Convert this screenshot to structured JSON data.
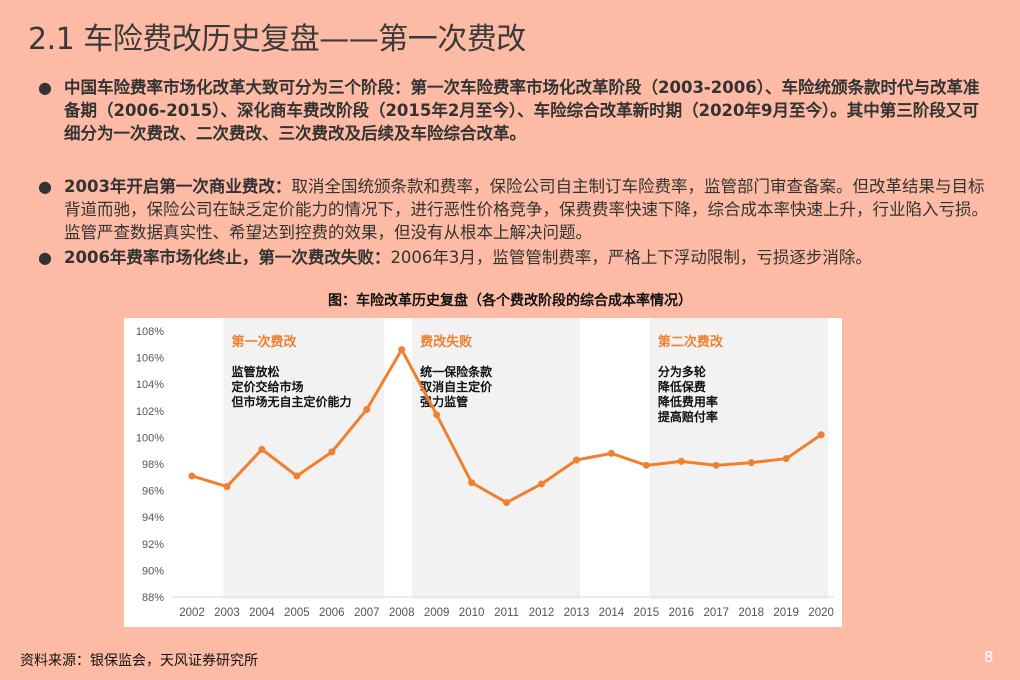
{
  "title": "2.1 车险费改历史复盘——第一次费改",
  "bullets": [
    {
      "bold": "中国车险费率市场化改革大致可分为三个阶段：第一次车险费率市场化改革阶段（2003-2006）、车险统颁条款时代与改革准备期（2006-2015）、深化商车费改阶段（2015年2月至今）、车险综合改革新时期（2020年9月至今）。其中第三阶段又可细分为一次费改、二次费改、三次费改及后续及车险综合改革。",
      "text": ""
    },
    {
      "bold": "2003年开启第一次商业费改：",
      "text": "取消全国统颁条款和费率，保险公司自主制订车险费率，监管部门审查备案。但改革结果与目标背道而驰，保险公司在缺乏定价能力的情况下，进行恶性价格竞争，保费费率快速下降，综合成本率快速上升，行业陷入亏损。监管严查数据真实性、希望达到控费的效果，但没有从根本上解决问题。"
    },
    {
      "bold": "2006年费率市场化终止，第一次费改失败：",
      "text": "2006年3月，监管管制费率，严格上下浮动限制，亏损逐步消除。"
    }
  ],
  "caption": "图：车险改革历史复盘（各个费改阶段的综合成本率情况）",
  "source": "资料来源：银保监会，天风证券研究所",
  "page_number": "8",
  "colors": {
    "line": "#f08030",
    "band": "#f2f2f2",
    "accent_text": "#f08030"
  },
  "chart_data": {
    "type": "line",
    "categories": [
      "2002",
      "2003",
      "2004",
      "2005",
      "2006",
      "2007",
      "2008",
      "2009",
      "2010",
      "2011",
      "2012",
      "2013",
      "2014",
      "2015",
      "2016",
      "2017",
      "2018",
      "2019",
      "2020"
    ],
    "values": [
      97.1,
      96.3,
      99.1,
      97.1,
      98.9,
      102.1,
      106.6,
      101.7,
      96.6,
      95.1,
      96.5,
      98.3,
      98.8,
      97.9,
      98.2,
      97.9,
      98.1,
      98.4,
      100.2
    ],
    "ylim": [
      88,
      108
    ],
    "yticks": [
      "88%",
      "90%",
      "92%",
      "94%",
      "96%",
      "98%",
      "100%",
      "102%",
      "104%",
      "106%",
      "108%"
    ],
    "grid": false,
    "bands": [
      {
        "from": 2002.9,
        "to": 2007.5,
        "title": "第一次费改",
        "lines": [
          "监管放松",
          "定价交给市场",
          "但市场无自主定价能力"
        ]
      },
      {
        "from": 2008.3,
        "to": 2013.1,
        "title": "费改失败",
        "lines": [
          "统一保险条款",
          "取消自主定价",
          "强力监管"
        ]
      },
      {
        "from": 2015.1,
        "to": 2020.2,
        "title": "第二次费改",
        "lines": [
          "分为多轮",
          "降低保费",
          "降低费用率",
          "提高赔付率"
        ]
      }
    ]
  }
}
